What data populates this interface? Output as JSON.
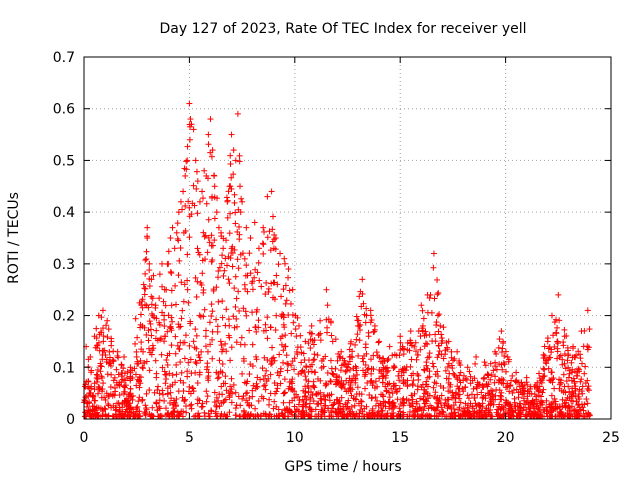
{
  "chart_data": {
    "type": "scatter",
    "title": "Day 127 of 2023, Rate Of TEC Index for receiver yell",
    "xlabel": "GPS time / hours",
    "ylabel": "ROTI / TECUs",
    "xlim": [
      0,
      25
    ],
    "ylim": [
      0,
      0.7
    ],
    "xticks": [
      0,
      5,
      10,
      15,
      20,
      25
    ],
    "yticks": [
      0,
      0.1,
      0.2,
      0.3,
      0.4,
      0.5,
      0.6,
      0.7
    ],
    "xtick_labels": [
      "0",
      "5",
      "10",
      "15",
      "20",
      "25"
    ],
    "ytick_labels": [
      "0",
      "0.1",
      "0.2",
      "0.3",
      "0.4",
      "0.5",
      "0.6",
      "0.7"
    ],
    "grid": true,
    "marker": "+",
    "color": "#ff0000",
    "series": [
      {
        "points": [
          [
            0.1,
            0.14
          ],
          [
            0.3,
            0.12
          ],
          [
            0.5,
            0.16
          ],
          [
            0.7,
            0.2
          ],
          [
            0.9,
            0.21
          ],
          [
            1.1,
            0.19
          ],
          [
            1.3,
            0.15
          ],
          [
            1.6,
            0.13
          ],
          [
            1.9,
            0.12
          ],
          [
            2.2,
            0.1
          ],
          [
            2.5,
            0.12
          ],
          [
            2.8,
            0.13
          ],
          [
            3.0,
            0.37
          ],
          [
            3.0,
            0.35
          ],
          [
            3.1,
            0.3
          ],
          [
            3.2,
            0.27
          ],
          [
            3.4,
            0.22
          ],
          [
            3.6,
            0.28
          ],
          [
            3.7,
            0.3
          ],
          [
            3.8,
            0.2
          ],
          [
            3.9,
            0.25
          ],
          [
            4.0,
            0.3
          ],
          [
            4.1,
            0.35
          ],
          [
            4.2,
            0.37
          ],
          [
            4.3,
            0.33
          ],
          [
            4.4,
            0.36
          ],
          [
            4.5,
            0.4
          ],
          [
            4.6,
            0.42
          ],
          [
            4.7,
            0.44
          ],
          [
            4.8,
            0.47
          ],
          [
            4.9,
            0.5
          ],
          [
            5.0,
            0.61
          ],
          [
            5.05,
            0.58
          ],
          [
            5.1,
            0.57
          ],
          [
            5.2,
            0.56
          ],
          [
            5.3,
            0.5
          ],
          [
            5.4,
            0.46
          ],
          [
            5.5,
            0.42
          ],
          [
            5.6,
            0.44
          ],
          [
            5.7,
            0.48
          ],
          [
            5.8,
            0.47
          ],
          [
            5.9,
            0.55
          ],
          [
            6.0,
            0.58
          ],
          [
            6.1,
            0.52
          ],
          [
            6.2,
            0.45
          ],
          [
            6.3,
            0.4
          ],
          [
            6.4,
            0.37
          ],
          [
            6.5,
            0.36
          ],
          [
            6.6,
            0.33
          ],
          [
            6.8,
            0.42
          ],
          [
            6.9,
            0.45
          ],
          [
            7.0,
            0.55
          ],
          [
            7.1,
            0.52
          ],
          [
            7.2,
            0.5
          ],
          [
            7.3,
            0.59
          ],
          [
            7.4,
            0.45
          ],
          [
            7.5,
            0.42
          ],
          [
            7.7,
            0.37
          ],
          [
            7.9,
            0.35
          ],
          [
            8.1,
            0.38
          ],
          [
            8.3,
            0.33
          ],
          [
            8.5,
            0.37
          ],
          [
            8.7,
            0.43
          ],
          [
            8.9,
            0.44
          ],
          [
            9.1,
            0.35
          ],
          [
            9.3,
            0.32
          ],
          [
            9.5,
            0.31
          ],
          [
            9.7,
            0.29
          ],
          [
            9.9,
            0.25
          ],
          [
            10.2,
            0.18
          ],
          [
            10.5,
            0.15
          ],
          [
            10.8,
            0.18
          ],
          [
            11.2,
            0.19
          ],
          [
            11.5,
            0.25
          ],
          [
            11.8,
            0.15
          ],
          [
            12.2,
            0.13
          ],
          [
            12.6,
            0.12
          ],
          [
            13.0,
            0.18
          ],
          [
            13.2,
            0.27
          ],
          [
            13.4,
            0.2
          ],
          [
            13.6,
            0.21
          ],
          [
            13.8,
            0.18
          ],
          [
            14.0,
            0.15
          ],
          [
            14.5,
            0.14
          ],
          [
            15.0,
            0.16
          ],
          [
            15.5,
            0.17
          ],
          [
            16.0,
            0.22
          ],
          [
            16.3,
            0.24
          ],
          [
            16.6,
            0.32
          ],
          [
            16.9,
            0.18
          ],
          [
            17.3,
            0.15
          ],
          [
            17.7,
            0.13
          ],
          [
            18.2,
            0.1
          ],
          [
            18.6,
            0.12
          ],
          [
            19.0,
            0.11
          ],
          [
            19.5,
            0.13
          ],
          [
            19.8,
            0.17
          ],
          [
            20.1,
            0.12
          ],
          [
            20.5,
            0.09
          ],
          [
            21.0,
            0.08
          ],
          [
            21.5,
            0.07
          ],
          [
            22.0,
            0.15
          ],
          [
            22.2,
            0.2
          ],
          [
            22.5,
            0.24
          ],
          [
            22.8,
            0.16
          ],
          [
            23.2,
            0.14
          ],
          [
            23.6,
            0.17
          ],
          [
            23.9,
            0.21
          ]
        ]
      }
    ]
  }
}
